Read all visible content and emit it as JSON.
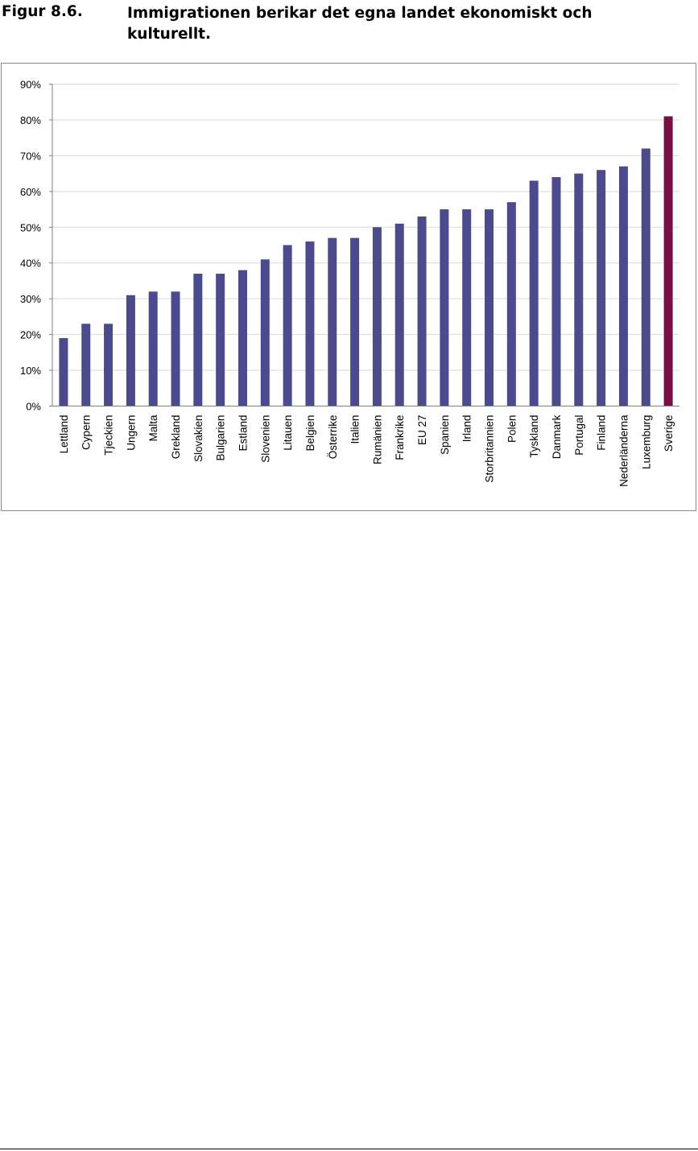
{
  "caption": {
    "label": "Figur 8.6.",
    "title": "Immigrationen berikar det egna landet ekonomiskt och kulturellt."
  },
  "colors": {
    "bar": "#4b4a8c",
    "highlight": "#7a0f45",
    "grid": "#d9d9d9",
    "axis": "#808080"
  },
  "chart_data": {
    "type": "bar",
    "title": "",
    "xlabel": "",
    "ylabel": "",
    "ylim": [
      0,
      90
    ],
    "yticks": [
      "0%",
      "10%",
      "20%",
      "30%",
      "40%",
      "50%",
      "60%",
      "70%",
      "80%",
      "90%"
    ],
    "grid": true,
    "highlight_category": "Sverige",
    "categories": [
      "Lettland",
      "Cypern",
      "Tjeckien",
      "Ungern",
      "Malta",
      "Grekland",
      "Slovakien",
      "Bulgarien",
      "Estland",
      "Slovenien",
      "Litauen",
      "Belgien",
      "Österrike",
      "Italien",
      "Rumänien",
      "Frankrike",
      "EU 27",
      "Spanien",
      "Irland",
      "Storbritannien",
      "Polen",
      "Tyskland",
      "Danmark",
      "Portugal",
      "Finland",
      "Nederländerna",
      "Luxemburg",
      "Sverige"
    ],
    "values": [
      19,
      23,
      23,
      31,
      32,
      32,
      37,
      37,
      38,
      41,
      45,
      46,
      47,
      47,
      50,
      51,
      53,
      55,
      55,
      55,
      57,
      63,
      64,
      65,
      66,
      67,
      72,
      81
    ]
  }
}
